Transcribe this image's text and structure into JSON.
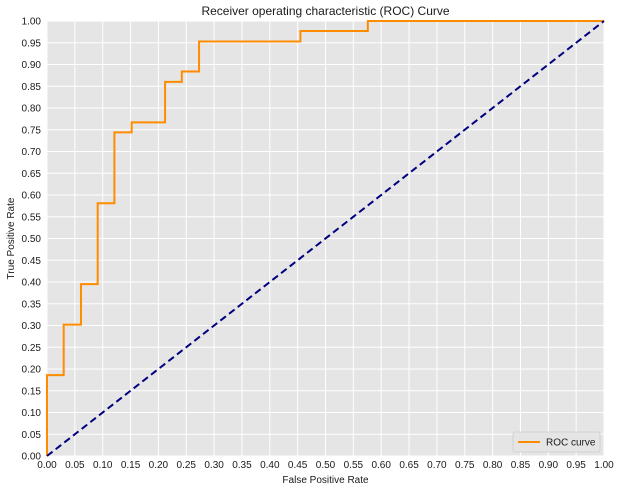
{
  "chart_data": {
    "type": "line",
    "title": "Receiver operating characteristic (ROC) Curve",
    "xlabel": "False Positive Rate",
    "ylabel": "True Positive Rate",
    "xlim": [
      0.0,
      1.0
    ],
    "ylim": [
      0.0,
      1.0
    ],
    "x_ticks": [
      "0.00",
      "0.05",
      "0.10",
      "0.15",
      "0.20",
      "0.25",
      "0.30",
      "0.35",
      "0.40",
      "0.45",
      "0.50",
      "0.55",
      "0.60",
      "0.65",
      "0.70",
      "0.75",
      "0.80",
      "0.85",
      "0.90",
      "0.95",
      "1.00"
    ],
    "y_ticks": [
      "0.00",
      "0.05",
      "0.10",
      "0.15",
      "0.20",
      "0.25",
      "0.30",
      "0.35",
      "0.40",
      "0.45",
      "0.50",
      "0.55",
      "0.60",
      "0.65",
      "0.70",
      "0.75",
      "0.80",
      "0.85",
      "0.90",
      "0.95",
      "1.00"
    ],
    "grid": true,
    "legend_position": "lower-right",
    "series": [
      {
        "name": "ROC curve",
        "color": "#ff8c00",
        "style": "solid-step",
        "x": [
          0.0,
          0.0,
          0.03,
          0.03,
          0.061,
          0.061,
          0.091,
          0.091,
          0.121,
          0.121,
          0.152,
          0.152,
          0.212,
          0.212,
          0.242,
          0.242,
          0.273,
          0.273,
          0.455,
          0.455,
          0.576,
          0.576,
          1.0
        ],
        "y": [
          0.0,
          0.186,
          0.186,
          0.302,
          0.302,
          0.395,
          0.395,
          0.581,
          0.581,
          0.744,
          0.744,
          0.767,
          0.767,
          0.86,
          0.86,
          0.884,
          0.884,
          0.953,
          0.953,
          0.977,
          0.977,
          1.0,
          1.0
        ]
      },
      {
        "color": "#000080",
        "style": "dashed",
        "x": [
          0.0,
          1.0
        ],
        "y": [
          0.0,
          1.0
        ]
      }
    ],
    "colors": {
      "background": "#e5e5e5",
      "grid": "#ffffff"
    }
  }
}
